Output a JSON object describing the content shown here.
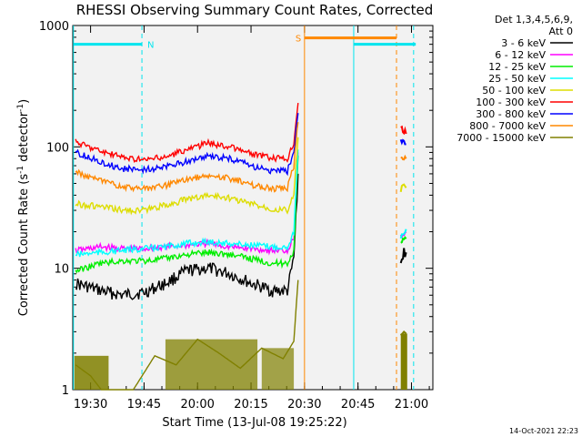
{
  "chart_data": {
    "type": "line",
    "title": "RHESSI Observing Summary Count Rates, Corrected",
    "xlabel": "Start Time (13-Jul-08 19:25:22)",
    "ylabel_parts": [
      "Corrected Count Rate (s",
      "-1",
      " detector",
      "-1",
      ")"
    ],
    "ylabel": "Corrected Count Rate (s-1 detector-1)",
    "yscale": "log",
    "ylim": [
      1,
      1000
    ],
    "xlim_minutes": [
      19.4167,
      21.1
    ],
    "yticks": [
      {
        "value": 1,
        "label": "1"
      },
      {
        "value": 10,
        "label": "10"
      },
      {
        "value": 100,
        "label": "100"
      },
      {
        "value": 1000,
        "label": "1000"
      }
    ],
    "xticks": [
      {
        "value": 19.5,
        "label": "19:30"
      },
      {
        "value": 19.75,
        "label": "19:45"
      },
      {
        "value": 20.0,
        "label": "20:00"
      },
      {
        "value": 20.25,
        "label": "20:15"
      },
      {
        "value": 20.5,
        "label": "20:30"
      },
      {
        "value": 20.75,
        "label": "20:45"
      },
      {
        "value": 21.0,
        "label": "21:00"
      }
    ],
    "legend": {
      "header": [
        "Det 1,3,4,5,6,9,",
        "Att 0"
      ],
      "placement": "right"
    },
    "series": [
      {
        "name": "3 - 6 keV",
        "color": "#000000",
        "points": [
          [
            19.43,
            7.5
          ],
          [
            19.55,
            6.5
          ],
          [
            19.65,
            6.0
          ],
          [
            19.75,
            6.3
          ],
          [
            19.85,
            7.5
          ],
          [
            19.95,
            9.5
          ],
          [
            20.05,
            10.0
          ],
          [
            20.15,
            9.0
          ],
          [
            20.25,
            7.5
          ],
          [
            20.35,
            6.5
          ],
          [
            20.42,
            6.5
          ],
          [
            20.45,
            12.0
          ],
          [
            20.47,
            60.0
          ]
        ],
        "tail": [
          [
            20.95,
            12.0
          ],
          [
            20.965,
            14.0
          ],
          [
            20.975,
            13.5
          ]
        ]
      },
      {
        "name": "6 - 12 keV",
        "color": "#ff00ff",
        "points": [
          [
            19.43,
            14.0
          ],
          [
            19.55,
            15.0
          ],
          [
            19.65,
            14.5
          ],
          [
            19.75,
            14.5
          ],
          [
            19.85,
            15.0
          ],
          [
            19.95,
            15.5
          ],
          [
            20.05,
            16.0
          ],
          [
            20.15,
            15.0
          ],
          [
            20.25,
            14.5
          ],
          [
            20.35,
            14.0
          ],
          [
            20.42,
            14.0
          ],
          [
            20.45,
            18.0
          ],
          [
            20.47,
            90.0
          ]
        ],
        "tail": [
          [
            20.95,
            18.0
          ],
          [
            20.965,
            19.5
          ],
          [
            20.975,
            20.0
          ]
        ]
      },
      {
        "name": "12 - 25 keV",
        "color": "#00ee00",
        "points": [
          [
            19.43,
            9.5
          ],
          [
            19.55,
            11.0
          ],
          [
            19.65,
            11.5
          ],
          [
            19.75,
            11.5
          ],
          [
            19.85,
            12.0
          ],
          [
            19.95,
            13.0
          ],
          [
            20.05,
            13.5
          ],
          [
            20.15,
            13.0
          ],
          [
            20.25,
            12.0
          ],
          [
            20.35,
            11.0
          ],
          [
            20.42,
            11.0
          ],
          [
            20.45,
            14.0
          ],
          [
            20.47,
            85.0
          ]
        ],
        "tail": [
          [
            20.95,
            16.0
          ],
          [
            20.965,
            17.0
          ],
          [
            20.975,
            17.5
          ]
        ]
      },
      {
        "name": "25 - 50 keV",
        "color": "#00ffff",
        "points": [
          [
            19.43,
            13.0
          ],
          [
            19.55,
            13.5
          ],
          [
            19.65,
            14.0
          ],
          [
            19.75,
            14.5
          ],
          [
            19.85,
            15.0
          ],
          [
            19.95,
            16.0
          ],
          [
            20.05,
            16.5
          ],
          [
            20.15,
            16.0
          ],
          [
            20.25,
            15.5
          ],
          [
            20.35,
            15.0
          ],
          [
            20.42,
            15.0
          ],
          [
            20.45,
            20.0
          ],
          [
            20.47,
            95.0
          ]
        ],
        "tail": [
          [
            20.95,
            18.0
          ],
          [
            20.965,
            20.0
          ],
          [
            20.975,
            21.0
          ]
        ]
      },
      {
        "name": "50 - 100 keV",
        "color": "#dddd00",
        "points": [
          [
            19.43,
            34.0
          ],
          [
            19.55,
            32.0
          ],
          [
            19.65,
            30.0
          ],
          [
            19.75,
            30.0
          ],
          [
            19.85,
            33.0
          ],
          [
            19.95,
            37.0
          ],
          [
            20.05,
            40.0
          ],
          [
            20.15,
            38.0
          ],
          [
            20.25,
            34.0
          ],
          [
            20.35,
            31.0
          ],
          [
            20.42,
            30.0
          ],
          [
            20.45,
            40.0
          ],
          [
            20.47,
            120.0
          ]
        ],
        "tail": [
          [
            20.95,
            45.0
          ],
          [
            20.965,
            48.0
          ],
          [
            20.975,
            46.0
          ]
        ]
      },
      {
        "name": "100 - 300 keV",
        "color": "#ff0000",
        "points": [
          [
            19.43,
            110.0
          ],
          [
            19.55,
            92.0
          ],
          [
            19.65,
            82.0
          ],
          [
            19.75,
            78.0
          ],
          [
            19.85,
            82.0
          ],
          [
            19.95,
            95.0
          ],
          [
            20.05,
            108.0
          ],
          [
            20.15,
            100.0
          ],
          [
            20.25,
            88.0
          ],
          [
            20.35,
            80.0
          ],
          [
            20.42,
            80.0
          ],
          [
            20.45,
            110.0
          ],
          [
            20.47,
            230.0
          ]
        ],
        "tail": [
          [
            20.95,
            140.0
          ],
          [
            20.965,
            135.0
          ],
          [
            20.975,
            128.0
          ]
        ]
      },
      {
        "name": "300 - 800 keV",
        "color": "#0000ff",
        "points": [
          [
            19.43,
            90.0
          ],
          [
            19.55,
            75.0
          ],
          [
            19.65,
            66.0
          ],
          [
            19.75,
            65.0
          ],
          [
            19.85,
            68.0
          ],
          [
            19.95,
            76.0
          ],
          [
            20.05,
            84.0
          ],
          [
            20.15,
            80.0
          ],
          [
            20.25,
            70.0
          ],
          [
            20.35,
            63.0
          ],
          [
            20.42,
            63.0
          ],
          [
            20.45,
            90.0
          ],
          [
            20.47,
            190.0
          ]
        ],
        "tail": [
          [
            20.95,
            115.0
          ],
          [
            20.965,
            110.0
          ],
          [
            20.975,
            105.0
          ]
        ]
      },
      {
        "name": "800 - 7000 keV",
        "color": "#ff8800",
        "points": [
          [
            19.43,
            62.0
          ],
          [
            19.55,
            52.0
          ],
          [
            19.65,
            47.0
          ],
          [
            19.75,
            45.0
          ],
          [
            19.85,
            48.0
          ],
          [
            19.95,
            54.0
          ],
          [
            20.05,
            58.0
          ],
          [
            20.15,
            55.0
          ],
          [
            20.25,
            49.0
          ],
          [
            20.35,
            45.0
          ],
          [
            20.42,
            46.0
          ],
          [
            20.45,
            70.0
          ],
          [
            20.47,
            160.0
          ]
        ],
        "tail": [
          [
            20.95,
            85.0
          ],
          [
            20.965,
            82.0
          ],
          [
            20.975,
            80.0
          ]
        ]
      },
      {
        "name": "7000 - 15000 keV",
        "color": "#808000",
        "points": [
          [
            19.43,
            1.6
          ],
          [
            19.5,
            1.3
          ],
          [
            19.55,
            1.0
          ],
          [
            19.7,
            1.0
          ],
          [
            19.8,
            1.9
          ],
          [
            19.9,
            1.6
          ],
          [
            20.0,
            2.6
          ],
          [
            20.1,
            2.0
          ],
          [
            20.2,
            1.5
          ],
          [
            20.3,
            2.2
          ],
          [
            20.4,
            1.8
          ],
          [
            20.45,
            2.5
          ],
          [
            20.47,
            8.0
          ]
        ],
        "tail": [
          [
            20.95,
            2.8
          ],
          [
            20.965,
            3.0
          ],
          [
            20.975,
            2.9
          ]
        ]
      }
    ],
    "flags": [
      {
        "label": "",
        "color": "#00e5ee",
        "from": 19.42,
        "to": 19.74,
        "y": 700
      },
      {
        "label": "N",
        "color": "#00e5ee",
        "from": 19.74,
        "to": 19.74,
        "y": 700
      },
      {
        "label": "S",
        "color": "#ff8800",
        "from": 20.5,
        "to": 20.93,
        "y": 790
      },
      {
        "label": "",
        "color": "#00e5ee",
        "from": 20.73,
        "to": 21.02,
        "y": 700
      }
    ],
    "vlines": [
      {
        "x": 19.42,
        "color": "#00e5ee",
        "style": "solid"
      },
      {
        "x": 19.74,
        "color": "#00e5ee",
        "style": "dashed"
      },
      {
        "x": 20.5,
        "color": "#ff8800",
        "style": "solid"
      },
      {
        "x": 20.73,
        "color": "#00e5ee",
        "style": "solid"
      },
      {
        "x": 20.93,
        "color": "#ff8800",
        "style": "dashed"
      },
      {
        "x": 21.01,
        "color": "#00e5ee",
        "style": "dashed"
      }
    ],
    "footer": "14-Oct-2021 22:23"
  }
}
